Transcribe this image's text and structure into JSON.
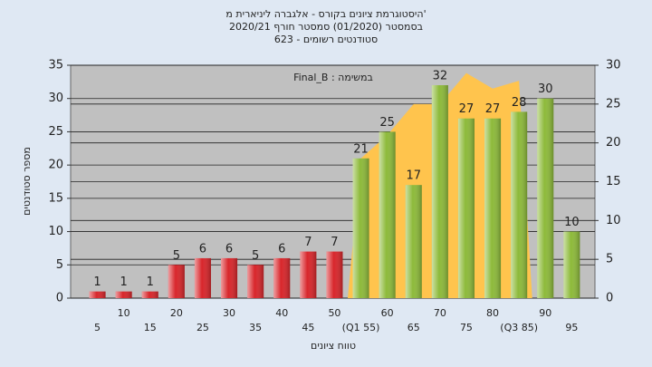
{
  "chart_data": {
    "type": "bar",
    "title": [
      "היסטוגרמת ציונים בקורס - אלגברה ליניארית מ'",
      "בסמסטר (01/2020) סמסטר חורף 2020/21",
      "סטודנטים רשומים - 623"
    ],
    "annotation": "Final_B : במשימה",
    "x_label": "טווח ציונים",
    "y_label": "מספר סטודנטים",
    "categories": [
      "5",
      "10",
      "15",
      "20",
      "25",
      "30",
      "35",
      "40",
      "45",
      "50",
      "(Q1 55)",
      "60",
      "65",
      "70",
      "75",
      "80",
      "(Q3 85)",
      "90",
      "95"
    ],
    "series": [
      {
        "type": "bar",
        "values": [
          1,
          1,
          1,
          5,
          6,
          6,
          5,
          6,
          7,
          7,
          21,
          25,
          17,
          32,
          27,
          27,
          28,
          30,
          10
        ],
        "colors": [
          "#d8262b",
          "#d8262b",
          "#d8262b",
          "#d8262b",
          "#d8262b",
          "#d8262b",
          "#d8262b",
          "#d8262b",
          "#d8262b",
          "#d8262b",
          "#8dba3a",
          "#8dba3a",
          "#8dba3a",
          "#8dba3a",
          "#8dba3a",
          "#8dba3a",
          "#8dba3a",
          "#8dba3a",
          "#8dba3a"
        ]
      },
      {
        "type": "area",
        "axis": "y2",
        "color": "#ffc44d",
        "values": [
          null,
          null,
          null,
          null,
          null,
          null,
          null,
          null,
          null,
          null,
          18,
          21,
          25,
          25,
          29,
          27,
          28,
          null,
          null
        ]
      }
    ],
    "ylim": [
      0,
      35
    ],
    "yticks": [
      0,
      5,
      10,
      15,
      20,
      25,
      30,
      35
    ],
    "y2lim": [
      0,
      30
    ],
    "y2ticks": [
      0,
      5,
      10,
      15,
      20,
      25,
      30
    ],
    "grid": true
  }
}
